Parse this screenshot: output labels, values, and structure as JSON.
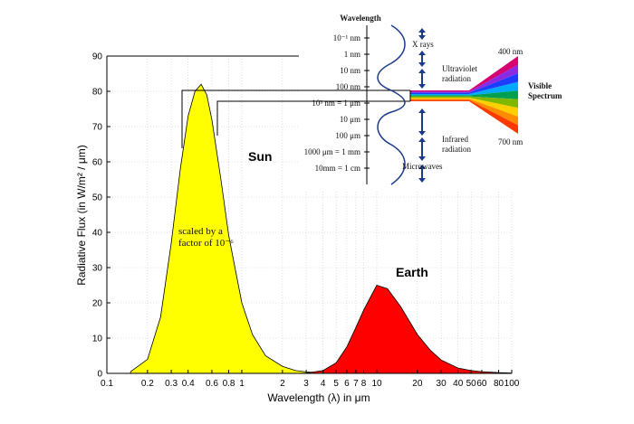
{
  "chart_data": {
    "type": "area",
    "xlabel": "Wavelength (λ) in μm",
    "ylabel": "Radiative Flux (in W/m² / μm)",
    "xscale": "log",
    "xlim": [
      0.1,
      100
    ],
    "ylim": [
      0,
      90
    ],
    "grid": true,
    "x_tick_labels": [
      "0.1",
      "0.2",
      "0.3",
      "0.4",
      "0.6",
      "0.8",
      "1",
      "2",
      "3",
      "4",
      "5",
      "6",
      "7",
      "8",
      "10",
      "20",
      "30",
      "40",
      "50",
      "60",
      "80",
      "100"
    ],
    "x_tick_values": [
      0.1,
      0.2,
      0.3,
      0.4,
      0.6,
      0.8,
      1,
      2,
      3,
      4,
      5,
      6,
      7,
      8,
      10,
      20,
      30,
      40,
      50,
      60,
      80,
      100
    ],
    "y_tick_labels": [
      "0",
      "10",
      "20",
      "30",
      "40",
      "50",
      "60",
      "70",
      "80",
      "90"
    ],
    "y_tick_values": [
      0,
      10,
      20,
      30,
      40,
      50,
      60,
      70,
      80,
      90
    ],
    "series": [
      {
        "name": "Sun",
        "color": "#ffff00",
        "x": [
          0.15,
          0.2,
          0.25,
          0.3,
          0.35,
          0.4,
          0.45,
          0.5,
          0.55,
          0.6,
          0.7,
          0.8,
          1.0,
          1.2,
          1.5,
          2.0,
          2.5,
          3.0,
          4.0
        ],
        "y": [
          0.5,
          4,
          16,
          37,
          58,
          73,
          80,
          82,
          79,
          72,
          55,
          39,
          20,
          11,
          5,
          2,
          0.8,
          0.4,
          0.1
        ]
      },
      {
        "name": "Earth",
        "color": "#ff0000",
        "x": [
          2.5,
          3,
          4,
          5,
          6,
          7,
          8,
          10,
          12,
          15,
          20,
          25,
          30,
          40,
          50,
          60,
          80,
          100
        ],
        "y": [
          0,
          0.1,
          0.8,
          3,
          7.5,
          13,
          18,
          25,
          24,
          19,
          11,
          6.5,
          3.8,
          1.5,
          0.8,
          0.5,
          0.2,
          0.1
        ]
      }
    ],
    "annotations": {
      "sun_label": "Sun",
      "earth_label": "Earth",
      "scale_note_line1": "scaled by a",
      "scale_note_line2": "factor of 10⁻⁶"
    }
  },
  "spectrum_inset": {
    "title": "Wavelength",
    "scale_labels": [
      "10⁻¹ nm",
      "1 nm",
      "10 nm",
      "100 nm",
      "10³ nm = 1 μm",
      "10 μm",
      "100 μm",
      "1000 μm = 1 mm",
      "10mm = 1 cm"
    ],
    "bands": [
      "X rays",
      "Ultraviolet",
      "radiation",
      "Infrared",
      "radiation",
      "Microwaves"
    ],
    "visible_top": "400 nm",
    "visible_bottom": "700 nm",
    "visible_label_1": "Visible",
    "visible_label_2": "Spectrum",
    "colors": [
      "#d6006e",
      "#8a2be2",
      "#1e3cff",
      "#00aaff",
      "#00a050",
      "#7fb800",
      "#ffd000",
      "#ff8c00",
      "#ff3a00"
    ]
  }
}
